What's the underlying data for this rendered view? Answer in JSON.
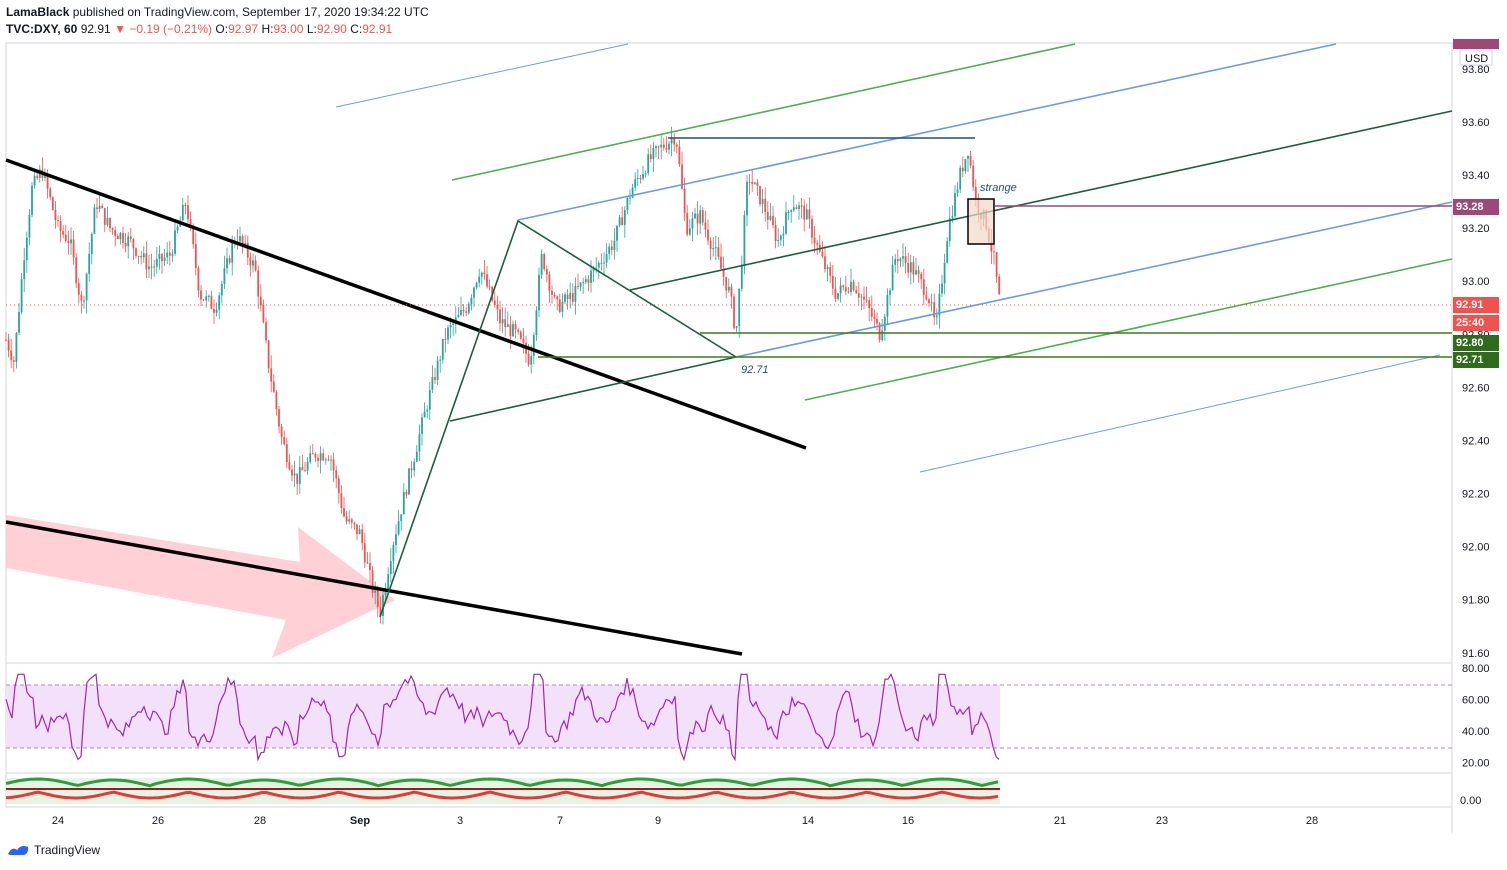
{
  "header": {
    "author": "LamaBlack",
    "published_text": "published on TradingView.com, September 17, 2020 19:34:22 UTC",
    "symbol": "TVC:DXY, 60",
    "last": "92.91",
    "change": "−0.19 (−0.21%)",
    "o_label": "O:",
    "o_val": "92.97",
    "h_label": "H:",
    "h_val": "93.00",
    "l_label": "L:",
    "l_val": "92.90",
    "c_label": "C:",
    "c_val": "92.91"
  },
  "currency": "USD",
  "price_axis_ticks": [
    "93.80",
    "93.60",
    "93.40",
    "93.20",
    "93.00",
    "92.80",
    "92.60",
    "92.40",
    "92.20",
    "92.00",
    "91.80",
    "91.60"
  ],
  "price_labels": [
    {
      "text": "93.28",
      "color": "#9c4a75"
    },
    {
      "text": "92.91",
      "color": "#ef5350"
    },
    {
      "text": "25:40",
      "color": "#ef5350"
    },
    {
      "text": "92.80",
      "color": "#2e6b1a"
    },
    {
      "text": "92.71",
      "color": "#2e6b1a"
    }
  ],
  "rsi_axis_ticks": [
    "80.00",
    "60.00",
    "40.00",
    "20.00"
  ],
  "osc_axis_tick": "0.00",
  "time_axis_ticks": [
    "24",
    "26",
    "28",
    "Sep",
    "3",
    "7",
    "9",
    "14",
    "16",
    "21",
    "23",
    "28"
  ],
  "annotations": {
    "strange": "strange",
    "low_label": "92.71"
  },
  "branding": "TradingView",
  "colors": {
    "up": "#26a69a",
    "down": "#ef5350",
    "trendline": "#000000",
    "channel_blue": "#6a9be3",
    "channel_green": "#4caf50",
    "dark_green": "#1b5e3b",
    "support": "#3d7a1c",
    "rsi": "#9c27b0",
    "rsi_band": "#f3e0fb"
  },
  "chart_data": [
    {
      "type": "candlestick",
      "symbol": "TVC:DXY",
      "interval": "60",
      "x_range": [
        "24",
        "28 (Sep)"
      ],
      "ylim": [
        91.55,
        93.85
      ],
      "last_price": 92.91,
      "ohlc_last": {
        "open": 92.97,
        "high": 93.0,
        "low": 92.9,
        "close": 92.91
      },
      "key_levels": [
        93.28,
        92.8,
        92.71
      ],
      "swing_low": 91.72,
      "swing_high": 93.67
    },
    {
      "type": "line",
      "name": "RSI",
      "ylim": [
        15,
        82
      ],
      "bands": [
        70,
        30
      ]
    }
  ]
}
